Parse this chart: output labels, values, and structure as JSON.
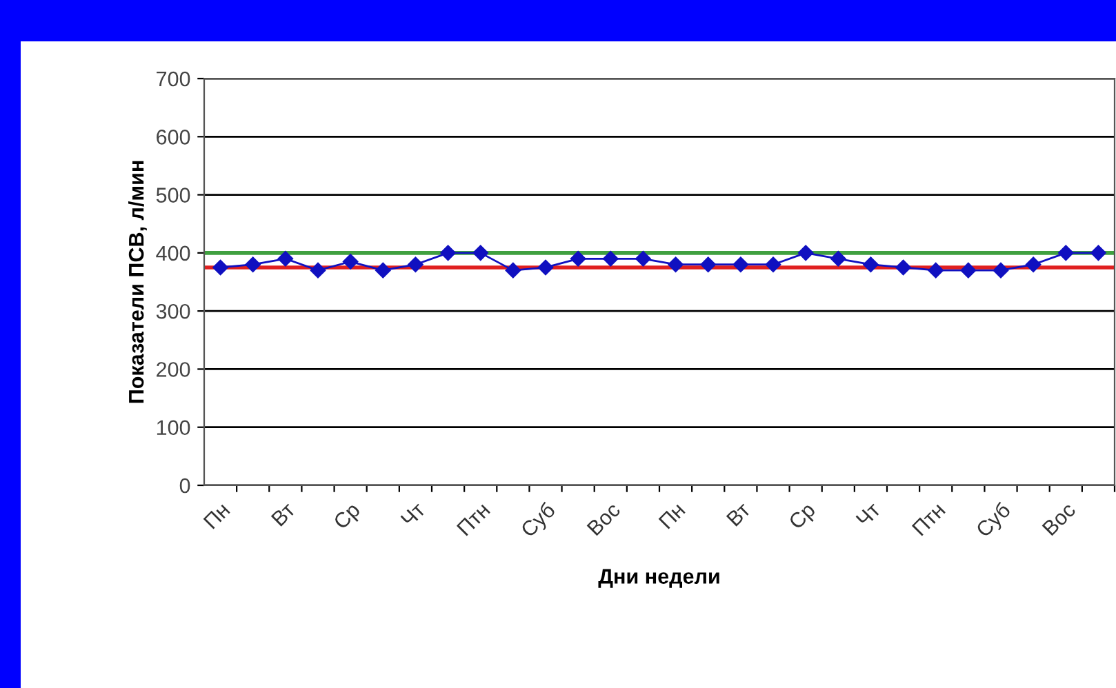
{
  "chart_data": {
    "type": "line",
    "xlabel": "Дни недели",
    "ylabel": "Показатели ПСВ, л/мин",
    "categories": [
      "Пн",
      null,
      "Вт",
      null,
      "Ср",
      null,
      "Чт",
      null,
      "Птн",
      null,
      "Суб",
      null,
      "Вос",
      null,
      "Пн",
      null,
      "Вт",
      null,
      "Ср",
      null,
      "Чт",
      null,
      "Птн",
      null,
      "Суб",
      null,
      "Вос",
      null
    ],
    "series": [
      {
        "color": "#1010c0",
        "values": [
          375,
          380,
          390,
          370,
          385,
          370,
          380,
          400,
          400,
          370,
          375,
          390,
          390,
          390,
          380,
          380,
          380,
          380,
          400,
          390,
          380,
          375,
          370,
          370,
          370,
          380,
          400,
          400
        ]
      }
    ],
    "ylim": [
      0,
      700
    ],
    "yticks": [
      0,
      100,
      200,
      300,
      400,
      500,
      600,
      700
    ],
    "ref_lines": [
      {
        "axis": "y",
        "value": 400,
        "color": "#40a040"
      },
      {
        "axis": "y",
        "value": 375,
        "color": "#e02020"
      }
    ],
    "grid": "y",
    "marker": "diamond",
    "line_style": "solid"
  }
}
